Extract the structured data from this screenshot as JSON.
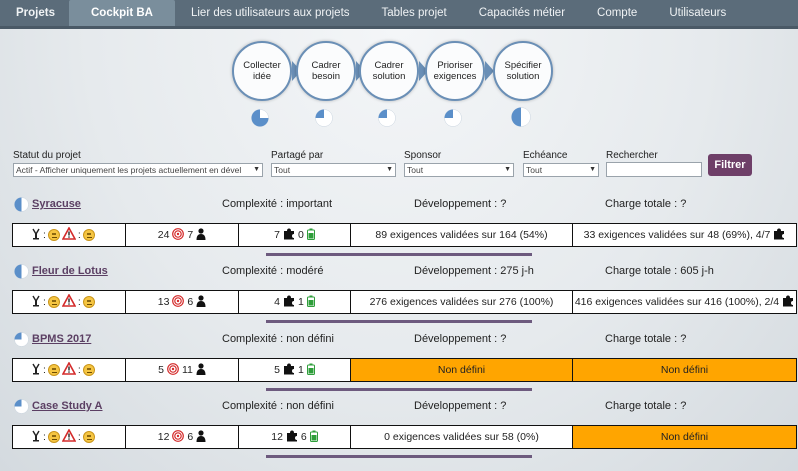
{
  "nav": {
    "tabs": [
      {
        "label": "Projets"
      },
      {
        "label": "Cockpit BA"
      },
      {
        "label": "Lier des utilisateurs aux projets"
      },
      {
        "label": "Tables projet"
      },
      {
        "label": "Capacités métier"
      },
      {
        "label": "Compte"
      },
      {
        "label": "Utilisateurs"
      }
    ],
    "active": "Cockpit BA"
  },
  "process": {
    "steps": [
      {
        "label": "Collecter idée",
        "line1": "Collecter",
        "line2": "idée",
        "progress": 0.75
      },
      {
        "label": "Cadrer besoin",
        "line1": "Cadrer",
        "line2": "besoin",
        "progress": 0.25
      },
      {
        "label": "Cadrer solution",
        "line1": "Cadrer",
        "line2": "solution",
        "progress": 0.25
      },
      {
        "label": "Prioriser exigences",
        "line1": "Prioriser",
        "line2": "exigences",
        "progress": 0.25
      },
      {
        "label": "Spécifier solution",
        "line1": "Spécifier",
        "line2": "solution",
        "progress": 0.5
      }
    ]
  },
  "filters": {
    "status_label": "Statut du projet",
    "status_value": "Actif - Afficher uniquement les projets actuellement en dével",
    "shared_label": "Partagé par",
    "shared_value": "Tout",
    "sponsor_label": "Sponsor",
    "sponsor_value": "Tout",
    "deadline_label": "Echéance",
    "deadline_value": "Tout",
    "search_label": "Rechercher",
    "search_value": "",
    "filter_button": "Filtrer"
  },
  "projects": [
    {
      "name": "Syracuse",
      "complexity": "Complexité : important",
      "development": "Développement : ?",
      "charge": "Charge totale : ?",
      "progress": 0.5,
      "colon": ":",
      "targets": "24",
      "persons": "7",
      "puzzles": "7",
      "batteries": "0",
      "requirements": "89 exigences validées sur 164 (54%)",
      "total": "33 exigences validées sur 48 (69%), 4/7",
      "total_orange": false,
      "req_orange": false
    },
    {
      "name": "Fleur de Lotus",
      "complexity": "Complexité : modéré",
      "development": "Développement : 275 j-h",
      "charge": "Charge totale : 605 j-h",
      "progress": 0.5,
      "colon": ":",
      "targets": "13",
      "persons": "6",
      "puzzles": "4",
      "batteries": "1",
      "requirements": "276 exigences validées sur 276 (100%)",
      "total": "416 exigences validées sur 416 (100%), 2/4",
      "total_orange": false,
      "req_orange": false
    },
    {
      "name": "BPMS 2017",
      "complexity": "Complexité : non défini",
      "development": "Développement : ?",
      "charge": "Charge totale : ?",
      "progress": 0.25,
      "colon": ":",
      "targets": "5",
      "persons": "11",
      "puzzles": "5",
      "batteries": "1",
      "requirements": "Non défini",
      "total": "Non défini",
      "total_orange": true,
      "req_orange": true
    },
    {
      "name": "Case Study A",
      "complexity": "Complexité : non défini",
      "development": "Développement : ?",
      "charge": "Charge totale : ?",
      "progress": 0.25,
      "colon": ":",
      "targets": "12",
      "persons": "6",
      "puzzles": "12",
      "batteries": "6",
      "requirements": "0 exigences validées sur 58 (0%)",
      "total": "Non défini",
      "total_orange": true,
      "req_orange": false
    }
  ]
}
